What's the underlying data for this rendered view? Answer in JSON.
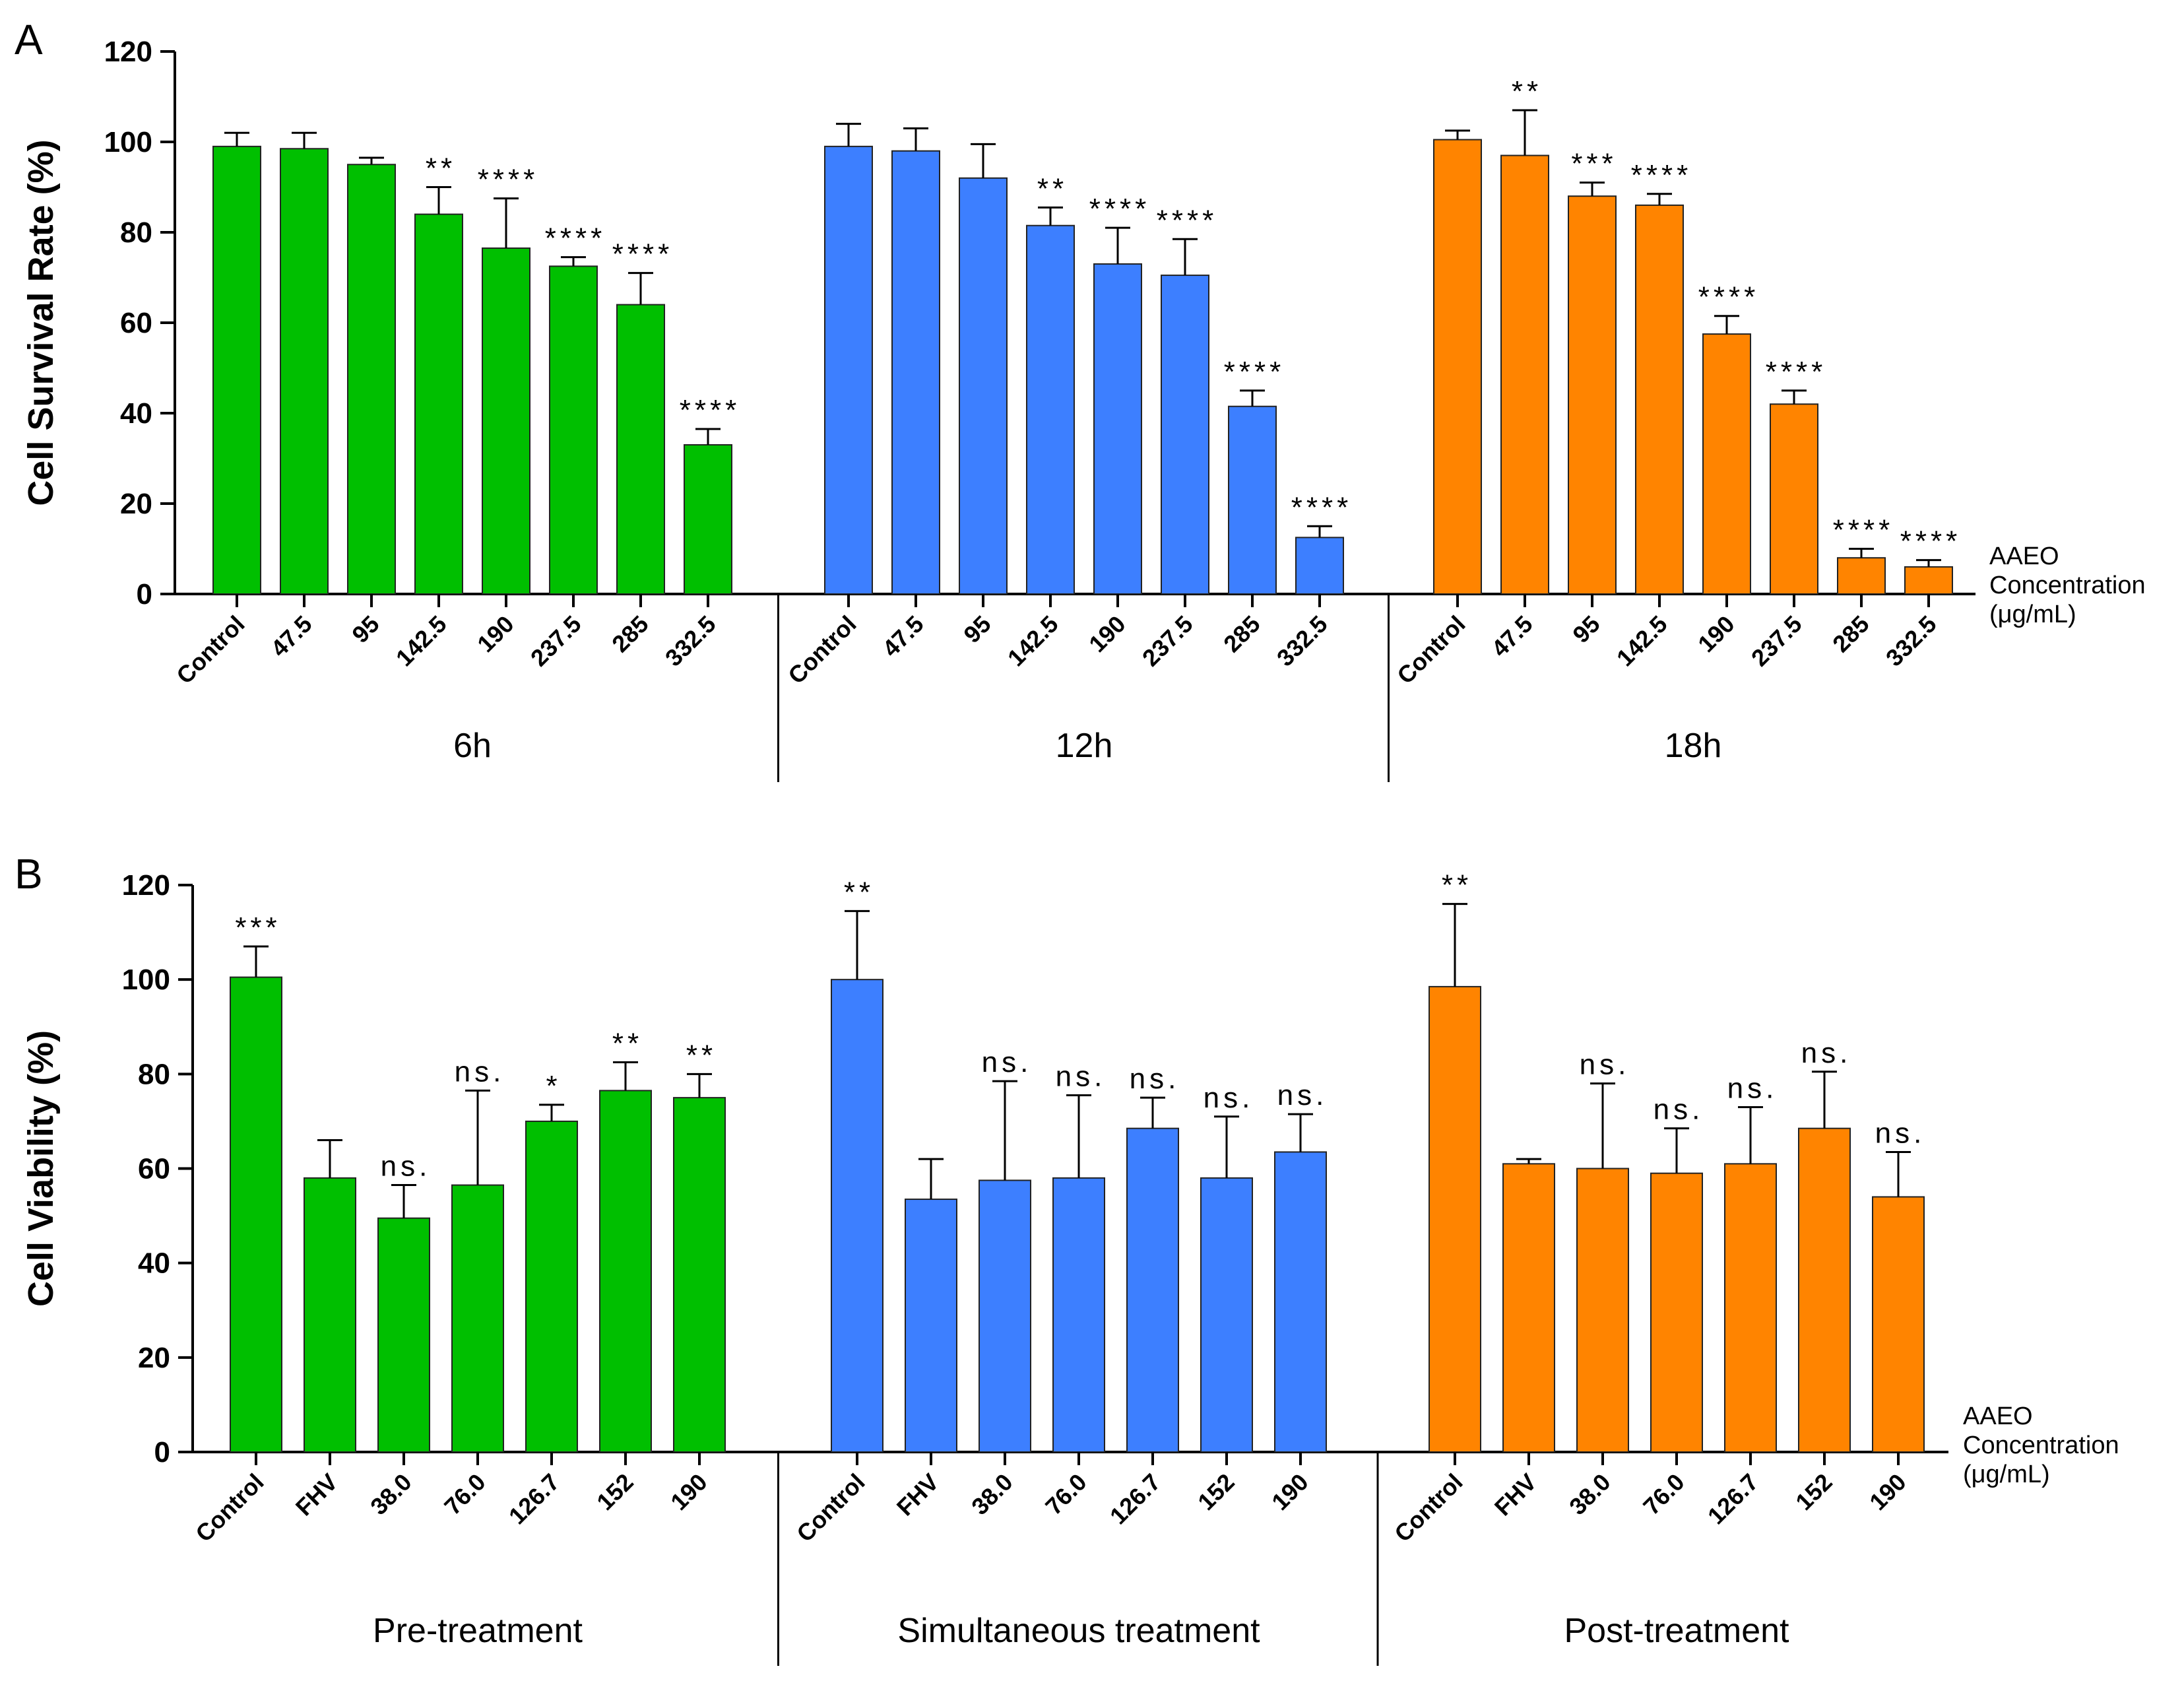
{
  "figure": {
    "colors": {
      "green": "#00bf00",
      "blue": "#3d7fff",
      "orange": "#ff8400",
      "axis": "#000000"
    }
  },
  "chart_data": [
    {
      "panel": "A",
      "type": "bar",
      "ylabel": "Cell Survival Rate  (%)",
      "ylim": [
        0,
        120
      ],
      "yticks": [
        "0",
        "20",
        "40",
        "60",
        "80",
        "100",
        "120"
      ],
      "concentration_label": [
        "AAEO",
        "Concentration",
        "(μg/mL)"
      ],
      "groups": [
        {
          "label": "6h",
          "color": "green",
          "categories": [
            "Control",
            "47.5",
            "95",
            "142.5",
            "190",
            "237.5",
            "285",
            "332.5"
          ],
          "values": [
            99,
            98.5,
            95,
            84,
            76.5,
            72.5,
            64,
            33
          ],
          "errors": [
            3,
            3.5,
            1.5,
            6,
            11,
            2,
            7,
            3.5
          ],
          "significance": [
            "",
            "",
            "",
            "**",
            "****",
            "****",
            "****",
            "****"
          ]
        },
        {
          "label": "12h",
          "color": "blue",
          "categories": [
            "Control",
            "47.5",
            "95",
            "142.5",
            "190",
            "237.5",
            "285",
            "332.5"
          ],
          "values": [
            99,
            98,
            92,
            81.5,
            73,
            70.5,
            41.5,
            12.5
          ],
          "errors": [
            5,
            5,
            7.5,
            4,
            8,
            8,
            3.5,
            2.5
          ],
          "significance": [
            "",
            "",
            "",
            "**",
            "****",
            "****",
            "****",
            "****"
          ]
        },
        {
          "label": "18h",
          "color": "orange",
          "categories": [
            "Control",
            "47.5",
            "95",
            "142.5",
            "190",
            "237.5",
            "285",
            "332.5"
          ],
          "values": [
            100.5,
            97,
            88,
            86,
            57.5,
            42,
            8,
            6
          ],
          "errors": [
            2,
            10,
            3,
            2.5,
            4,
            3,
            2,
            1.5
          ],
          "significance": [
            "",
            "**",
            "***",
            "****",
            "****",
            "****",
            "****",
            "****"
          ]
        }
      ]
    },
    {
      "panel": "B",
      "type": "bar",
      "ylabel": "Cell Viability (%)",
      "ylim": [
        0,
        120
      ],
      "yticks": [
        "0",
        "20",
        "40",
        "60",
        "80",
        "100",
        "120"
      ],
      "concentration_label": [
        "AAEO",
        "Concentration",
        "(μg/mL)"
      ],
      "groups": [
        {
          "label": "Pre-treatment",
          "color": "green",
          "categories": [
            "Control",
            "FHV",
            "38.0",
            "76.0",
            "126.7",
            "152",
            "190"
          ],
          "values": [
            100.5,
            58,
            49.5,
            56.5,
            70,
            76.5,
            75
          ],
          "errors": [
            6.5,
            8,
            7,
            20,
            3.5,
            6,
            5
          ],
          "significance": [
            "***",
            "",
            "ns.",
            "ns.",
            "*",
            "**",
            "**"
          ]
        },
        {
          "label": "Simultaneous treatment",
          "color": "blue",
          "categories": [
            "Control",
            "FHV",
            "38.0",
            "76.0",
            "126.7",
            "152",
            "190"
          ],
          "values": [
            100,
            53.5,
            57.5,
            58,
            68.5,
            58,
            63.5
          ],
          "errors": [
            14.5,
            8.5,
            21,
            17.5,
            6.5,
            13,
            8
          ],
          "significance": [
            "**",
            "",
            "ns.",
            "ns.",
            "ns.",
            "ns.",
            "ns."
          ]
        },
        {
          "label": "Post-treatment",
          "color": "orange",
          "categories": [
            "Control",
            "FHV",
            "38.0",
            "76.0",
            "126.7",
            "152",
            "190"
          ],
          "values": [
            98.5,
            61,
            60,
            59,
            61,
            68.5,
            54
          ],
          "errors": [
            17.5,
            1,
            18,
            9.5,
            12,
            12,
            9.5
          ],
          "significance": [
            "**",
            "",
            "ns.",
            "ns.",
            "ns.",
            "ns.",
            "ns."
          ]
        }
      ]
    }
  ]
}
